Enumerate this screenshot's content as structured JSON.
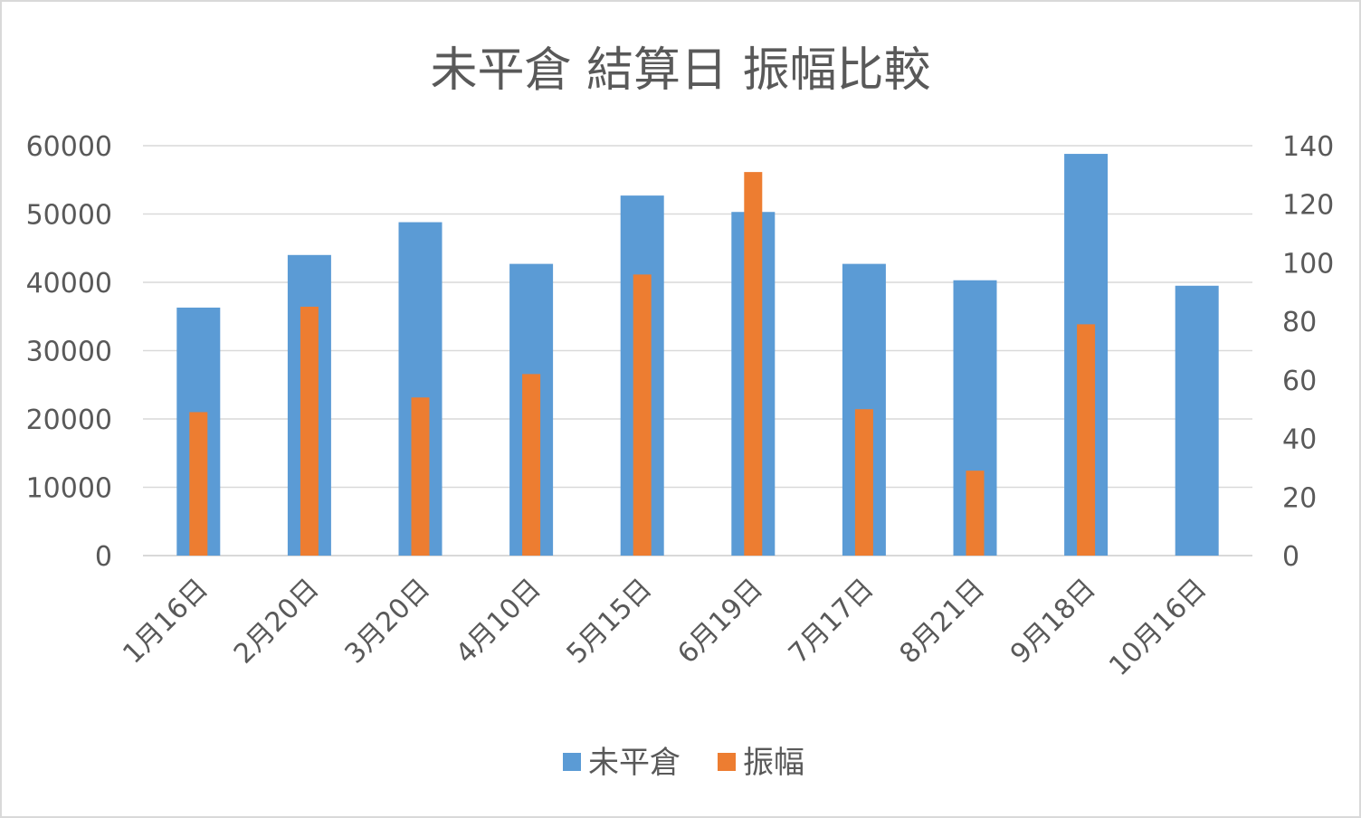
{
  "chart_data": {
    "type": "bar",
    "title": "未平倉 結算日 振幅比較",
    "categories": [
      "1月16日",
      "2月20日",
      "3月20日",
      "4月10日",
      "5月15日",
      "6月19日",
      "7月17日",
      "8月21日",
      "9月18日",
      "10月16日"
    ],
    "series": [
      {
        "name": "未平倉",
        "axis": "left",
        "color": "#5B9BD5",
        "values": [
          36300,
          44000,
          48800,
          42700,
          52700,
          50300,
          42700,
          40300,
          58800,
          39500
        ]
      },
      {
        "name": "振幅",
        "axis": "right",
        "color": "#ED7D31",
        "values": [
          49,
          85,
          54,
          62,
          96,
          131,
          50,
          29,
          79,
          null
        ]
      }
    ],
    "y_left": {
      "min": 0,
      "max": 60000,
      "ticks": [
        "0",
        "10000",
        "20000",
        "30000",
        "40000",
        "50000",
        "60000"
      ]
    },
    "y_right": {
      "min": 0,
      "max": 140,
      "ticks": [
        "0",
        "20",
        "40",
        "60",
        "80",
        "100",
        "120",
        "140"
      ]
    },
    "grid": true,
    "legend_position": "bottom",
    "gridline_color": "#d9d9d9"
  }
}
